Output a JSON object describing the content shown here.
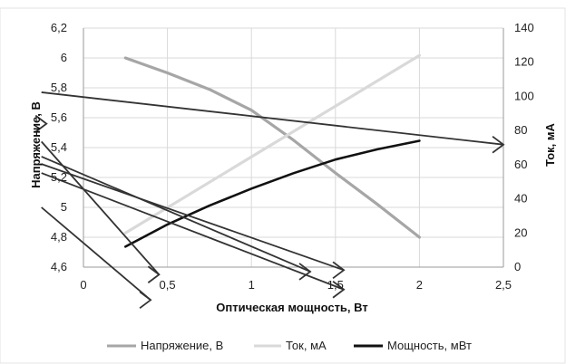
{
  "chart_data": {
    "type": "line",
    "xlabel": "Оптическая мощность, Вт",
    "ylabel_left": "Напряжение, В",
    "ylabel_right": "Ток, мА",
    "xlim": [
      0,
      2.5
    ],
    "ylim_left": [
      4.6,
      6.2
    ],
    "ylim_right": [
      0,
      140
    ],
    "x_ticks": [
      "0",
      "0,5",
      "1",
      "1,5",
      "2",
      "2,5"
    ],
    "y_left_ticks": [
      "4,6",
      "4,8",
      "5",
      "5,2",
      "5,4",
      "5,6",
      "5,8",
      "6",
      "6,2"
    ],
    "y_right_ticks": [
      "0",
      "20",
      "40",
      "60",
      "80",
      "100",
      "120",
      "140"
    ],
    "grid": true,
    "legend_position": "bottom",
    "series": [
      {
        "name": "Напряжение, В",
        "axis": "left",
        "color": "#a6a6a6",
        "points": [
          [
            0.25,
            6.0
          ],
          [
            0.5,
            5.9
          ],
          [
            0.75,
            5.79
          ],
          [
            1.0,
            5.65
          ],
          [
            1.25,
            5.45
          ],
          [
            1.5,
            5.23
          ],
          [
            1.75,
            5.02
          ],
          [
            2.0,
            4.8
          ]
        ]
      },
      {
        "name": "Ток, мА",
        "axis": "right",
        "color": "#d9d9d9",
        "points": [
          [
            0.25,
            20
          ],
          [
            2.0,
            124
          ]
        ]
      },
      {
        "name": "Мощность, мВт",
        "axis": "right",
        "color": "#111111",
        "points": [
          [
            0.25,
            12
          ],
          [
            0.5,
            25
          ],
          [
            0.75,
            36
          ],
          [
            1.0,
            46
          ],
          [
            1.25,
            55
          ],
          [
            1.5,
            63
          ],
          [
            1.75,
            69
          ],
          [
            2.0,
            74
          ]
        ]
      }
    ],
    "annotations": {
      "color": "#333333",
      "lines": [
        {
          "from": [
            -0.25,
            5.77
          ],
          "to": [
            2.5,
            5.42
          ],
          "axis": "left"
        },
        {
          "from": [
            -0.25,
            5.44
          ],
          "to": [
            0.45,
            4.55
          ]
        },
        {
          "from": [
            -0.25,
            5.34
          ],
          "to": [
            1.35,
            4.57
          ]
        },
        {
          "from": [
            -0.25,
            5.29
          ],
          "to": [
            1.55,
            4.58
          ]
        },
        {
          "from": [
            -0.25,
            5.23
          ],
          "to": [
            1.55,
            4.45
          ]
        },
        {
          "from": [
            -0.25,
            5.0
          ],
          "to": [
            0.4,
            4.38
          ]
        }
      ],
      "arrowheads": [
        [
          2.5,
          5.42
        ],
        [
          0.45,
          4.55
        ],
        [
          1.35,
          4.57
        ],
        [
          1.55,
          4.58
        ],
        [
          1.55,
          4.45
        ],
        [
          0.4,
          4.38
        ],
        [
          -0.22,
          5.56
        ]
      ]
    }
  }
}
